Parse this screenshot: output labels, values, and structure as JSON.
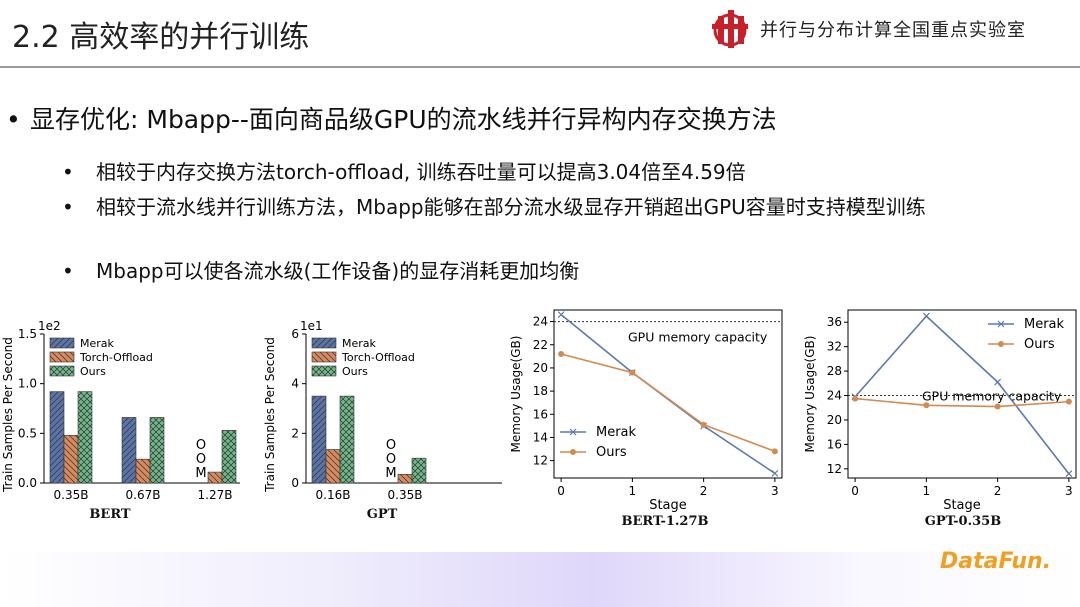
{
  "slide": {
    "title": "2.2 高效率的并行训练",
    "lab_name": "并行与分布计算全国重点实验室",
    "main_bullet": "显存优化: Mbapp--面向商品级GPU的流水线并行异构内存交换方法",
    "sub_bullets": [
      "相较于内存交换方法torch-offload, 训练吞吐量可以提高3.04倍至4.59倍",
      "相较于流水线并行训练方法，Mbapp能够在部分流水级显存开销超出GPU容量时支持模型训练",
      "Mbapp可以使各流水级(工作设备)的显存消耗更加均衡"
    ],
    "brand": "DataFun.",
    "bullet_dot": "•",
    "colors": {
      "merak": "#5a74a8",
      "torch": "#d68a5e",
      "ours": "#6fb98a",
      "line_merak": "#5b78b0",
      "line_ours": "#d4894f"
    }
  },
  "chart_data": [
    {
      "type": "bar",
      "title": "BERT",
      "ylabel": "Train Samples Per Second",
      "scale_label": "1e2",
      "ylim": [
        0,
        1.5
      ],
      "yticks": [
        "0.0",
        "0.5",
        "1.0",
        "1.5"
      ],
      "categories": [
        "0.35B",
        "0.67B",
        "1.27B"
      ],
      "series": [
        {
          "name": "Merak",
          "values": [
            0.92,
            0.66,
            null
          ]
        },
        {
          "name": "Torch-Offload",
          "values": [
            0.48,
            0.24,
            0.11
          ]
        },
        {
          "name": "Ours",
          "values": [
            0.92,
            0.66,
            0.53
          ]
        }
      ],
      "annotations": [
        {
          "text": "O\nO\nM",
          "category": "1.27B",
          "series": "Merak"
        }
      ],
      "legend": "top-left"
    },
    {
      "type": "bar",
      "title": "GPT",
      "ylabel": "Train Samples Per Second",
      "scale_label": "1e1",
      "ylim": [
        0,
        6
      ],
      "yticks": [
        "0",
        "2",
        "4",
        "6"
      ],
      "categories": [
        "0.16B",
        "0.35B"
      ],
      "series": [
        {
          "name": "Merak",
          "values": [
            3.5,
            null
          ]
        },
        {
          "name": "Torch-Offload",
          "values": [
            1.35,
            0.35
          ]
        },
        {
          "name": "Ours",
          "values": [
            3.5,
            1.0
          ]
        }
      ],
      "annotations": [
        {
          "text": "O\nO\nM",
          "category": "0.35B",
          "series": "Merak"
        }
      ],
      "legend": "top-left"
    },
    {
      "type": "line",
      "title": "BERT-1.27B",
      "xlabel": "Stage",
      "ylabel": "Memory Usage(GB)",
      "x": [
        0,
        1,
        2,
        3
      ],
      "xlim": [
        -0.1,
        3.1
      ],
      "ylim": [
        10.5,
        25
      ],
      "yticks": [
        12,
        14,
        16,
        18,
        20,
        22,
        24
      ],
      "series": [
        {
          "name": "Merak",
          "values": [
            24.6,
            19.6,
            15.0,
            10.9
          ]
        },
        {
          "name": "Ours",
          "values": [
            21.2,
            19.6,
            15.1,
            12.8
          ]
        }
      ],
      "capacity": 24,
      "capacity_label": "GPU memory capacity",
      "legend": "bottom-left"
    },
    {
      "type": "line",
      "title": "GPT-0.35B",
      "xlabel": "Stage",
      "ylabel": "Memory Usage(GB)",
      "x": [
        0,
        1,
        2,
        3
      ],
      "xlim": [
        -0.1,
        3.1
      ],
      "ylim": [
        10.5,
        38
      ],
      "yticks": [
        12,
        16,
        20,
        24,
        28,
        32,
        36
      ],
      "series": [
        {
          "name": "Merak",
          "values": [
            23.8,
            37.0,
            26.2,
            11.2
          ]
        },
        {
          "name": "Ours",
          "values": [
            23.5,
            22.4,
            22.2,
            23.0
          ]
        }
      ],
      "capacity": 24,
      "capacity_label": "GPU memory capacity",
      "legend": "top-right"
    }
  ]
}
